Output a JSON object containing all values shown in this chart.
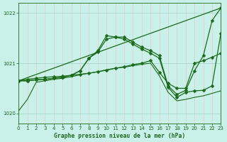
{
  "title": "Graphe pression niveau de la mer (hPa)",
  "xlim": [
    0,
    23
  ],
  "ylim": [
    1019.8,
    1022.2
  ],
  "yticks": [
    1020,
    1021,
    1022
  ],
  "xticks": [
    0,
    1,
    2,
    3,
    4,
    5,
    6,
    7,
    8,
    9,
    10,
    11,
    12,
    13,
    14,
    15,
    16,
    17,
    18,
    19,
    20,
    21,
    22,
    23
  ],
  "bg_color": "#caf0ea",
  "grid_color_v": "#e8c8c8",
  "grid_color_h": "#a8d8d0",
  "line_color": "#1a6b1a",
  "series": [
    {
      "name": "diagonal_trend",
      "x": [
        0,
        23
      ],
      "y": [
        1020.65,
        1022.1
      ],
      "marker": false,
      "lw": 0.9
    },
    {
      "name": "peaked_high",
      "x": [
        0,
        1,
        2,
        3,
        4,
        5,
        6,
        7,
        8,
        9,
        10,
        11,
        12,
        13,
        14,
        15,
        16,
        17,
        18,
        19,
        20,
        21,
        22,
        23
      ],
      "y": [
        1020.65,
        1020.65,
        1020.67,
        1020.68,
        1020.7,
        1020.72,
        1020.76,
        1020.85,
        1021.1,
        1021.25,
        1021.55,
        1021.52,
        1021.52,
        1021.42,
        1021.32,
        1021.25,
        1021.15,
        1020.55,
        1020.38,
        1020.46,
        1020.85,
        1021.15,
        1021.85,
        1022.1
      ],
      "marker": true,
      "lw": 0.9
    },
    {
      "name": "peaked_lower",
      "x": [
        0,
        1,
        2,
        3,
        4,
        5,
        6,
        7,
        8,
        9,
        10,
        11,
        12,
        13,
        14,
        15,
        16,
        17,
        18,
        19,
        20,
        21,
        22,
        23
      ],
      "y": [
        1020.65,
        1020.65,
        1020.67,
        1020.68,
        1020.7,
        1020.72,
        1020.76,
        1020.85,
        1021.1,
        1021.22,
        1021.48,
        1021.52,
        1021.48,
        1021.38,
        1021.28,
        1021.2,
        1021.1,
        1020.52,
        1020.32,
        1020.42,
        1020.45,
        1020.46,
        1020.55,
        1021.6
      ],
      "marker": true,
      "lw": 0.9
    },
    {
      "name": "flat_rising",
      "x": [
        0,
        1,
        2,
        3,
        4,
        5,
        6,
        7,
        8,
        9,
        10,
        11,
        12,
        13,
        14,
        15,
        16,
        17,
        18,
        19,
        20,
        21,
        22,
        23
      ],
      "y": [
        1020.65,
        1020.68,
        1020.7,
        1020.72,
        1020.73,
        1020.74,
        1020.76,
        1020.78,
        1020.8,
        1020.83,
        1020.86,
        1020.9,
        1020.93,
        1020.97,
        1021.0,
        1021.05,
        1020.82,
        1020.6,
        1020.5,
        1020.5,
        1021.0,
        1021.05,
        1021.12,
        1021.2
      ],
      "marker": true,
      "lw": 0.9
    },
    {
      "name": "low_dip",
      "x": [
        0,
        1,
        2,
        3,
        4,
        5,
        6,
        7,
        8,
        9,
        10,
        11,
        12,
        13,
        14,
        15,
        16,
        17,
        18,
        19,
        20,
        21,
        22,
        23
      ],
      "y": [
        1020.05,
        1020.28,
        1020.62,
        1020.65,
        1020.68,
        1020.7,
        1020.73,
        1020.77,
        1020.8,
        1020.83,
        1020.87,
        1020.9,
        1020.92,
        1020.95,
        1020.98,
        1021.0,
        1020.75,
        1020.42,
        1020.25,
        1020.28,
        1020.32,
        1020.35,
        1020.4,
        1020.45
      ],
      "marker": false,
      "lw": 0.8
    }
  ]
}
